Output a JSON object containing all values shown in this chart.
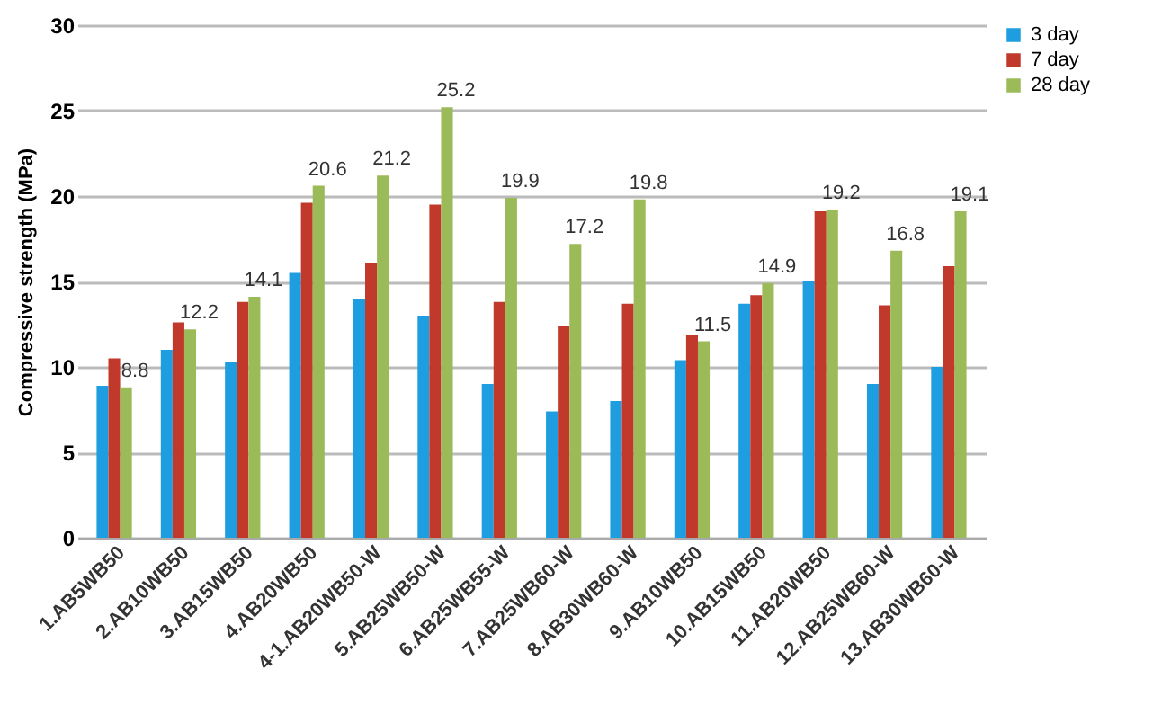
{
  "chart_data": {
    "type": "bar",
    "ylabel": "Compressive strength (MPa)",
    "categories": [
      "1.AB5WB50",
      "2.AB10WB50",
      "3.AB15WB50",
      "4.AB20WB50",
      "4-1.AB20WB50-W",
      "5.AB25WB50-W",
      "6.AB25WB55-W",
      "7.AB25WB60-W",
      "8.AB30WB60-W",
      "9.AB10WB50",
      "10.AB15WB50",
      "11.AB20WB50",
      "12.AB25WB60-W",
      "13.AB30WB60-W"
    ],
    "series": [
      {
        "name": "3 day",
        "color": "#1e9ee0",
        "values": [
          8.9,
          11,
          10.3,
          15.5,
          14,
          13,
          9,
          7.4,
          8,
          10.4,
          13.7,
          15,
          9,
          10
        ]
      },
      {
        "name": "7 day",
        "color": "#c0392b",
        "values": [
          10.5,
          12.6,
          13.8,
          19.6,
          16.1,
          19.5,
          13.8,
          12.4,
          13.7,
          11.9,
          14.2,
          19.1,
          13.6,
          15.9
        ]
      },
      {
        "name": "28 day",
        "color": "#9bbb59",
        "values": [
          8.8,
          12.2,
          14.1,
          20.6,
          21.2,
          25.2,
          19.9,
          17.2,
          19.8,
          11.5,
          14.9,
          19.2,
          16.8,
          19.1
        ],
        "value_labels": [
          "8.8",
          "12.2",
          "14.1",
          "20.6",
          "21.2",
          "25.2",
          "19.9",
          "17.2",
          "19.8",
          "11.5",
          "14.9",
          "19.2",
          "16.8",
          "19.1"
        ]
      }
    ],
    "ylim": [
      0,
      30
    ],
    "yticks": [
      0,
      5,
      10,
      15,
      20,
      25,
      30
    ],
    "grid": "y",
    "legend": "right"
  }
}
